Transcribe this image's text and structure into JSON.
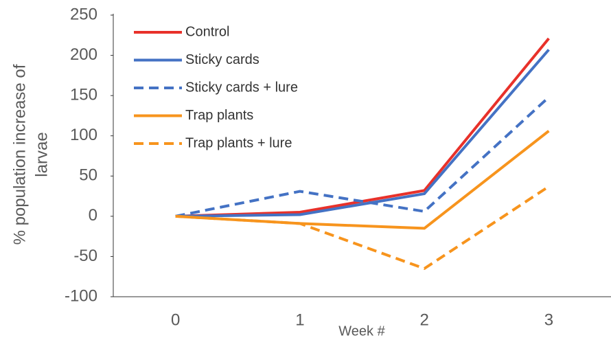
{
  "chart_data": {
    "type": "line",
    "categories": [
      "0",
      "1",
      "2",
      "3"
    ],
    "xlabel": "Week #",
    "ylabel": [
      "% population increase of",
      "larvae"
    ],
    "series": [
      {
        "name": "Control",
        "color": "#e8312a",
        "dashed": false,
        "values": [
          0,
          5,
          32,
          221
        ]
      },
      {
        "name": "Sticky cards",
        "color": "#4472c4",
        "dashed": false,
        "values": [
          0,
          2,
          28,
          207
        ]
      },
      {
        "name": "Sticky cards + lure",
        "color": "#4472c4",
        "dashed": true,
        "values": [
          0,
          31,
          6,
          148
        ]
      },
      {
        "name": "Trap plants",
        "color": "#f7941d",
        "dashed": false,
        "values": [
          0,
          -9,
          -15,
          106
        ]
      },
      {
        "name": "Trap plants + lure",
        "color": "#f7941d",
        "dashed": true,
        "values": [
          0,
          -9,
          -65,
          37
        ]
      }
    ],
    "ylim": [
      -100,
      250
    ],
    "yticks": [
      -100,
      -50,
      0,
      50,
      100,
      150,
      200,
      250
    ],
    "legend": "upper-left"
  }
}
